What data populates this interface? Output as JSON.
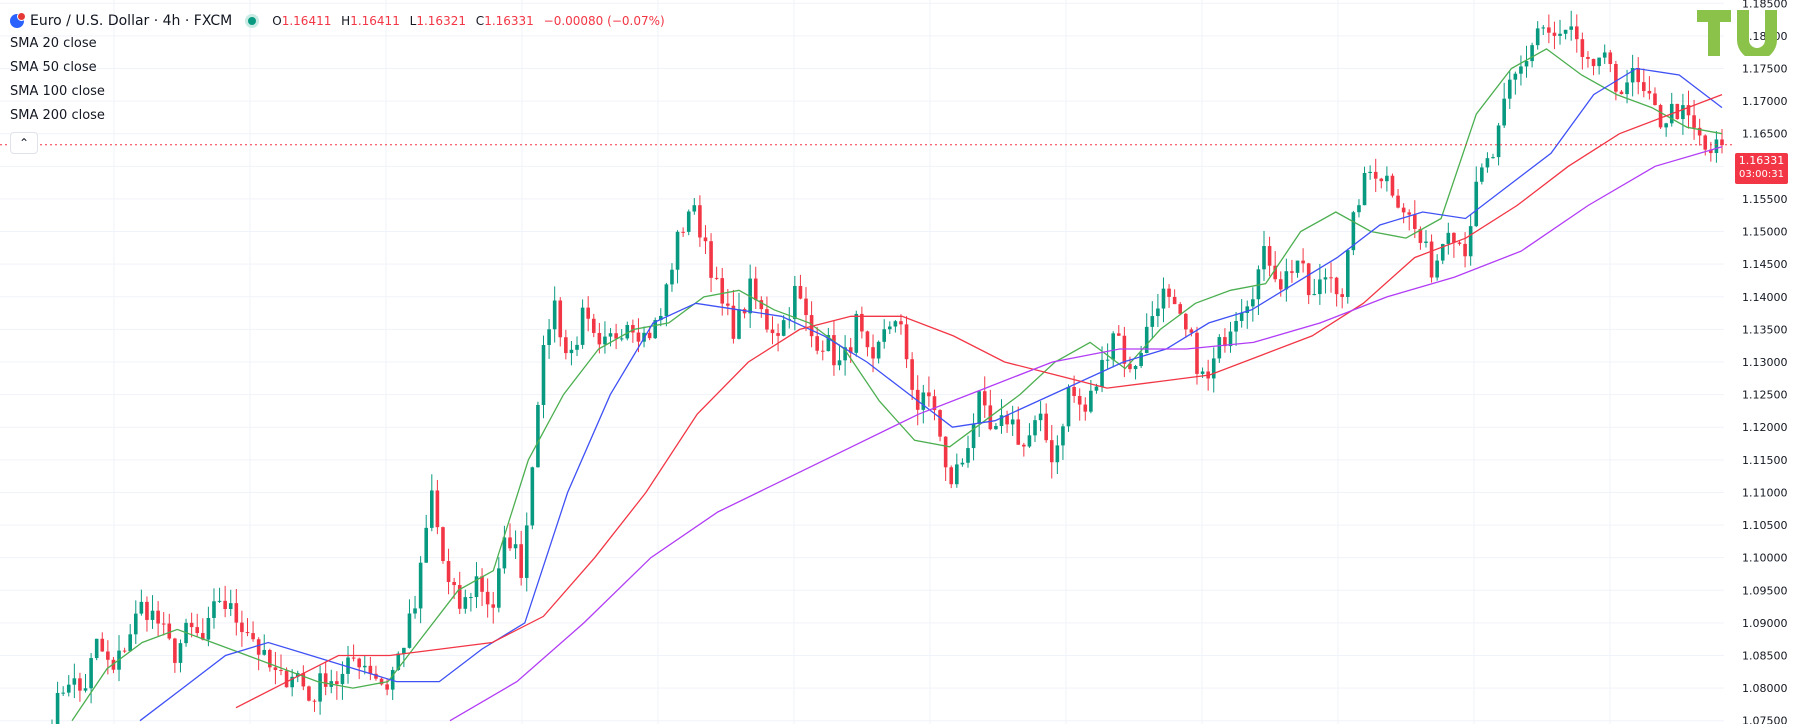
{
  "header": {
    "symbol": "Euro / U.S. Dollar · 4h · FXCM",
    "open_label": "O",
    "open": "1.16411",
    "high_label": "H",
    "high": "1.16411",
    "low_label": "L",
    "low": "1.16321",
    "close_label": "C",
    "close": "1.16331",
    "change": "−0.00080 (−0.07%)"
  },
  "indicators": [
    "SMA 20 close",
    "SMA 50 close",
    "SMA 100 close",
    "SMA 200 close"
  ],
  "last_price": {
    "price": "1.16331",
    "countdown": "03:00:31"
  },
  "colors": {
    "up": "#089981",
    "down": "#f23645",
    "sma20": "#4caf50",
    "sma50": "#3f51f5",
    "sma100": "#f23645",
    "sma200": "#b23cf5",
    "logo": "#8bc34a"
  },
  "chart_data": {
    "type": "candlestick",
    "ylim": [
      1.0745,
      1.1855
    ],
    "y_ticks": [
      "1.07500",
      "1.08000",
      "1.08500",
      "1.09000",
      "1.09500",
      "1.10000",
      "1.10500",
      "1.11000",
      "1.11500",
      "1.12000",
      "1.12500",
      "1.13000",
      "1.13500",
      "1.14000",
      "1.14500",
      "1.15000",
      "1.15500",
      "1.16000",
      "1.16500",
      "1.17000",
      "1.17500",
      "1.18000",
      "1.18500"
    ],
    "close_path": [
      1.075,
      1.082,
      1.079,
      1.087,
      1.082,
      1.088,
      1.093,
      1.09,
      1.085,
      1.089,
      1.087,
      1.094,
      1.091,
      1.089,
      1.084,
      1.081,
      1.083,
      1.078,
      1.082,
      1.081,
      1.085,
      1.083,
      1.08,
      1.086,
      1.093,
      1.11,
      1.096,
      1.092,
      1.097,
      1.092,
      1.104,
      1.098,
      1.125,
      1.14,
      1.13,
      1.137,
      1.131,
      1.134,
      1.137,
      1.134,
      1.136,
      1.147,
      1.154,
      1.149,
      1.139,
      1.135,
      1.141,
      1.136,
      1.135,
      1.141,
      1.134,
      1.133,
      1.129,
      1.136,
      1.128,
      1.137,
      1.134,
      1.123,
      1.125,
      1.111,
      1.115,
      1.124,
      1.118,
      1.122,
      1.117,
      1.121,
      1.115,
      1.126,
      1.122,
      1.128,
      1.136,
      1.128,
      1.134,
      1.141,
      1.137,
      1.133,
      1.126,
      1.133,
      1.138,
      1.141,
      1.147,
      1.142,
      1.146,
      1.139,
      1.144,
      1.141,
      1.155,
      1.16,
      1.158,
      1.154,
      1.149,
      1.144,
      1.152,
      1.147,
      1.158,
      1.162,
      1.172,
      1.176,
      1.182,
      1.179,
      1.181,
      1.174,
      1.177,
      1.172,
      1.174,
      1.17,
      1.167,
      1.169,
      1.166,
      1.162,
      1.163
    ],
    "sma20": [
      1.075,
      1.083,
      1.087,
      1.089,
      1.087,
      1.085,
      1.083,
      1.081,
      1.08,
      1.081,
      1.088,
      1.095,
      1.098,
      1.115,
      1.125,
      1.132,
      1.135,
      1.136,
      1.14,
      1.141,
      1.138,
      1.136,
      1.132,
      1.124,
      1.118,
      1.117,
      1.121,
      1.125,
      1.13,
      1.133,
      1.129,
      1.135,
      1.139,
      1.141,
      1.142,
      1.15,
      1.153,
      1.15,
      1.149,
      1.152,
      1.168,
      1.175,
      1.178,
      1.174,
      1.171,
      1.169,
      1.166,
      1.165
    ],
    "sma50": [
      1.075,
      1.08,
      1.085,
      1.087,
      1.085,
      1.083,
      1.081,
      1.081,
      1.086,
      1.09,
      1.11,
      1.125,
      1.136,
      1.139,
      1.138,
      1.137,
      1.134,
      1.13,
      1.125,
      1.12,
      1.121,
      1.124,
      1.127,
      1.13,
      1.132,
      1.136,
      1.138,
      1.142,
      1.146,
      1.151,
      1.153,
      1.152,
      1.157,
      1.162,
      1.171,
      1.175,
      1.174,
      1.169
    ],
    "sma100": [
      1.077,
      1.081,
      1.085,
      1.085,
      1.086,
      1.087,
      1.091,
      1.1,
      1.11,
      1.122,
      1.13,
      1.135,
      1.137,
      1.137,
      1.134,
      1.13,
      1.128,
      1.126,
      1.127,
      1.128,
      1.131,
      1.134,
      1.139,
      1.146,
      1.149,
      1.154,
      1.16,
      1.165,
      1.168,
      1.171
    ],
    "sma200": [
      1.075,
      1.081,
      1.09,
      1.1,
      1.107,
      1.112,
      1.117,
      1.122,
      1.126,
      1.13,
      1.132,
      1.132,
      1.133,
      1.136,
      1.14,
      1.143,
      1.147,
      1.154,
      1.16,
      1.163
    ]
  }
}
